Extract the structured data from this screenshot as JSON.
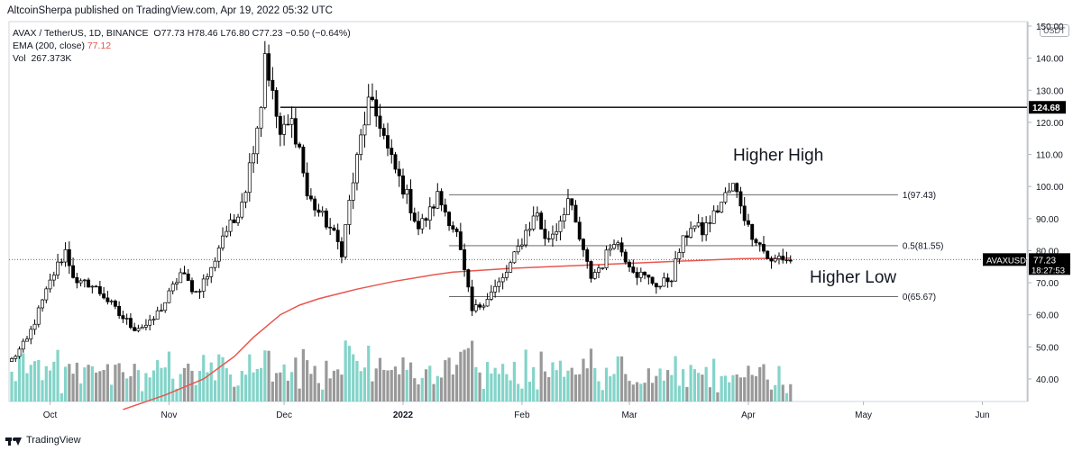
{
  "header": {
    "text": "AltcoinSherpa published on TradingView.com, Apr 19, 2022 05:32 UTC"
  },
  "legend": {
    "symbol": "AVAX / TetherUS, 1D, BINANCE",
    "ohlc": "O77.73  H78.46  L76.80  C77.23  −0.50 (−0.64%)",
    "ema_label": "EMA (200, close)",
    "ema_value": "77.12",
    "vol_label": "Vol",
    "vol_value": "267.373K"
  },
  "unit_badge": "USDT",
  "footer": {
    "brand": "TradingView"
  },
  "colors": {
    "up": "#ffffff",
    "down": "#000000",
    "ema": "#e9564e",
    "vol_up": "#76cfc3",
    "vol_down": "#8e8e8e",
    "price_tag": "#000000"
  },
  "chart_data": {
    "type": "candlestick",
    "title": "",
    "ylim": [
      30,
      155
    ],
    "y_ticks": [
      40,
      50,
      60,
      70,
      80,
      90,
      100,
      110,
      120,
      130,
      140,
      150
    ],
    "x_ticks": [
      {
        "label": "Oct",
        "day": 10
      },
      {
        "label": "Nov",
        "day": 41
      },
      {
        "label": "Dec",
        "day": 71
      },
      {
        "label": "2022",
        "day": 102
      },
      {
        "label": "Feb",
        "day": 133
      },
      {
        "label": "Mar",
        "day": 161
      },
      {
        "label": "Apr",
        "day": 192
      },
      {
        "label": "May",
        "day": 222
      },
      {
        "label": "Jun",
        "day": 253
      }
    ],
    "close_path": [
      [
        0,
        46
      ],
      [
        4,
        52
      ],
      [
        8,
        64
      ],
      [
        11,
        73
      ],
      [
        14,
        80
      ],
      [
        17,
        69
      ],
      [
        20,
        70
      ],
      [
        24,
        66
      ],
      [
        28,
        60
      ],
      [
        32,
        56
      ],
      [
        36,
        57
      ],
      [
        40,
        64
      ],
      [
        44,
        73
      ],
      [
        48,
        67
      ],
      [
        52,
        74
      ],
      [
        55,
        85
      ],
      [
        58,
        89
      ],
      [
        61,
        100
      ],
      [
        63,
        113
      ],
      [
        65,
        126
      ],
      [
        66,
        142
      ],
      [
        68,
        128
      ],
      [
        70,
        116
      ],
      [
        73,
        120
      ],
      [
        75,
        112
      ],
      [
        77,
        97
      ],
      [
        80,
        92
      ],
      [
        83,
        87
      ],
      [
        86,
        80
      ],
      [
        88,
        95
      ],
      [
        91,
        115
      ],
      [
        93,
        126
      ],
      [
        96,
        120
      ],
      [
        98,
        111
      ],
      [
        100,
        105
      ],
      [
        103,
        97
      ],
      [
        106,
        87
      ],
      [
        109,
        92
      ],
      [
        111,
        97
      ],
      [
        114,
        90
      ],
      [
        116,
        85
      ],
      [
        118,
        73
      ],
      [
        120,
        61
      ],
      [
        122,
        63
      ],
      [
        125,
        67
      ],
      [
        128,
        71
      ],
      [
        131,
        78
      ],
      [
        134,
        86
      ],
      [
        137,
        92
      ],
      [
        139,
        83
      ],
      [
        142,
        87
      ],
      [
        145,
        96
      ],
      [
        147,
        88
      ],
      [
        149,
        79
      ],
      [
        151,
        72
      ],
      [
        154,
        76
      ],
      [
        157,
        84
      ],
      [
        160,
        78
      ],
      [
        163,
        73
      ],
      [
        166,
        71
      ],
      [
        169,
        69
      ],
      [
        172,
        72
      ],
      [
        174,
        80
      ],
      [
        177,
        88
      ],
      [
        180,
        86
      ],
      [
        183,
        91
      ],
      [
        186,
        97
      ],
      [
        188,
        100
      ],
      [
        190,
        95
      ],
      [
        192,
        87
      ],
      [
        194,
        84
      ],
      [
        196,
        80
      ],
      [
        198,
        76
      ],
      [
        200,
        78
      ],
      [
        203,
        77
      ]
    ],
    "candles_count": 204,
    "volume_ylim": [
      0,
      2500
    ],
    "ema_200": [
      [
        29,
        30.5
      ],
      [
        40,
        35
      ],
      [
        50,
        40
      ],
      [
        58,
        47
      ],
      [
        63,
        53
      ],
      [
        67,
        57
      ],
      [
        70,
        60
      ],
      [
        75,
        63
      ],
      [
        80,
        65
      ],
      [
        90,
        68
      ],
      [
        100,
        70.5
      ],
      [
        110,
        72.5
      ],
      [
        115,
        73.3
      ],
      [
        130,
        74.5
      ],
      [
        150,
        75.5
      ],
      [
        170,
        76.5
      ],
      [
        190,
        77.5
      ],
      [
        203,
        77.7
      ]
    ],
    "levels": {
      "resistance": {
        "value": 124.68,
        "from_day": 70
      },
      "fib": [
        {
          "label": "1(97.43)",
          "value": 97.43
        },
        {
          "label": "0.5(81.55)",
          "value": 81.55
        },
        {
          "label": "0(65.67)",
          "value": 65.67
        }
      ],
      "fib_from_day": 114,
      "fib_to_day": 231
    },
    "last_price": {
      "value": 77.23,
      "symbol": "AVAXUSDT",
      "price_label": "77.23",
      "countdown": "18:27:53"
    },
    "resistance_tag": "124.68",
    "annotations": [
      {
        "text": "Higher High",
        "day": 188,
        "price": 108
      },
      {
        "text": "Higher Low",
        "day": 208,
        "price": 70
      }
    ]
  }
}
